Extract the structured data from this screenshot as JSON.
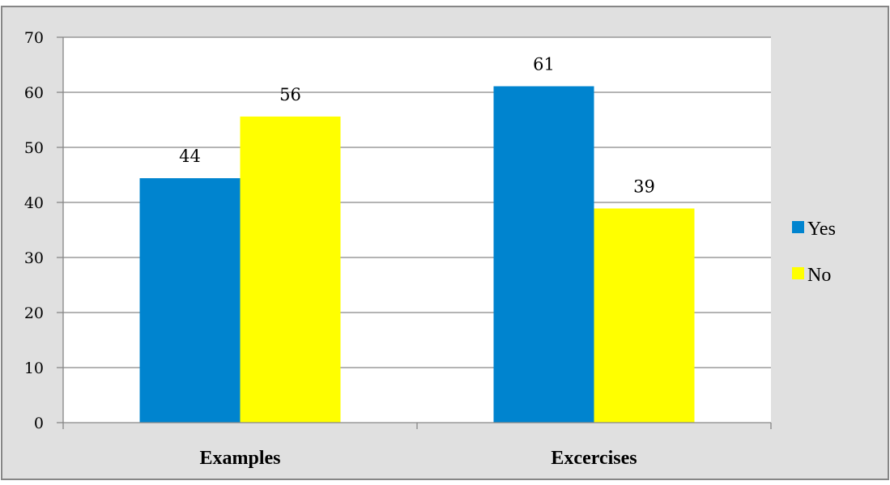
{
  "chart_data": {
    "type": "bar",
    "title": "",
    "xlabel": "",
    "ylabel": "",
    "categories": [
      "Examples",
      "Excercises"
    ],
    "series": [
      {
        "name": "Yes",
        "values": [
          44.4,
          61.1
        ],
        "labels": [
          "44",
          "61"
        ],
        "color": "#0084CF"
      },
      {
        "name": "No",
        "values": [
          55.6,
          38.9
        ],
        "labels": [
          "56",
          "39"
        ],
        "color": "#FFFF00"
      }
    ],
    "ylim": [
      0,
      70
    ],
    "yticks": [
      0,
      10,
      20,
      30,
      40,
      50,
      60,
      70
    ],
    "grid": true,
    "legend_position": "right",
    "colors": {
      "plot_background": "#FFFFFF",
      "chart_background": "#E0E0E0",
      "gridline": "#868686",
      "border": "#868686"
    }
  }
}
